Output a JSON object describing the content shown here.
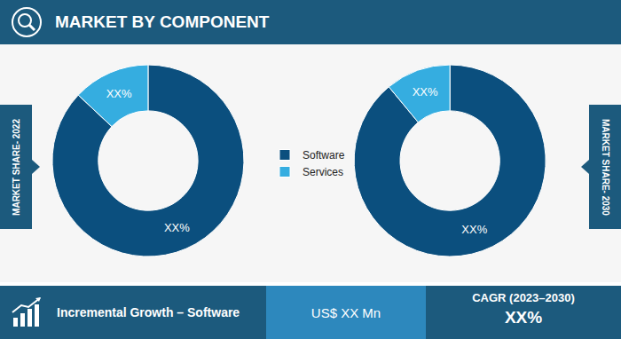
{
  "header": {
    "title": "MARKET BY COMPONENT"
  },
  "chart_data": [
    {
      "type": "pie",
      "title": "MARKET SHARE- 2022",
      "categories": [
        "Software",
        "Services"
      ],
      "values": [
        87,
        13
      ],
      "value_labels": [
        "XX%",
        "XX%"
      ],
      "colors": [
        "#0b4f7e",
        "#35ade0"
      ],
      "data_labels": true,
      "legend": "center"
    },
    {
      "type": "pie",
      "title": "MARKET SHARE- 2030",
      "categories": [
        "Software",
        "Services"
      ],
      "values": [
        89,
        11
      ],
      "value_labels": [
        "XX%",
        "XX%"
      ],
      "colors": [
        "#0b4f7e",
        "#35ade0"
      ],
      "data_labels": true,
      "legend": "center"
    }
  ],
  "footer": {
    "growth_label": "Incremental Growth – Software",
    "growth_value": "US$ XX Mn",
    "cagr_label": "CAGR (2023–2030)",
    "cagr_value": "XX%"
  }
}
